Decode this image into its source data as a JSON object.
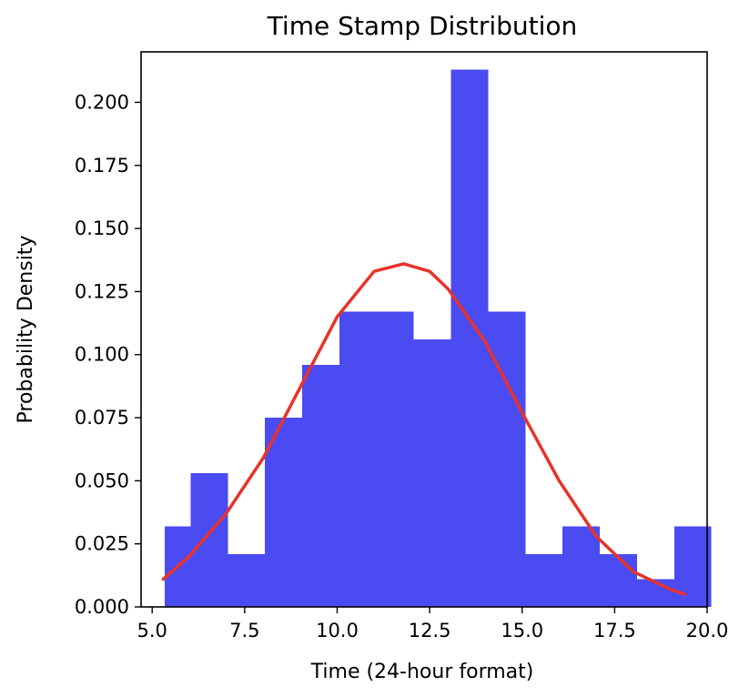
{
  "chart_data": {
    "type": "bar",
    "title": "Time Stamp Distribution",
    "xlabel": "Time (24-hour format)",
    "ylabel": "Probability Density",
    "xlim": [
      4.7,
      20.0
    ],
    "ylim": [
      0.0,
      0.22
    ],
    "xticks": [
      5.0,
      7.5,
      10.0,
      12.5,
      15.0,
      17.5,
      20.0
    ],
    "xtick_labels": [
      "5.0",
      "7.5",
      "10.0",
      "12.5",
      "15.0",
      "17.5",
      "20.0"
    ],
    "yticks": [
      0.0,
      0.025,
      0.05,
      0.075,
      0.1,
      0.125,
      0.15,
      0.175,
      0.2
    ],
    "ytick_labels": [
      "0.000",
      "0.025",
      "0.050",
      "0.075",
      "0.100",
      "0.125",
      "0.150",
      "0.175",
      "0.200"
    ],
    "grid": false,
    "series": [
      {
        "type": "histogram",
        "color": "#4b4bf2",
        "bins": [
          {
            "x0": 5.34,
            "x1": 6.04,
            "value": 0.032
          },
          {
            "x0": 6.04,
            "x1": 7.05,
            "value": 0.053
          },
          {
            "x0": 7.05,
            "x1": 8.05,
            "value": 0.021
          },
          {
            "x0": 8.05,
            "x1": 9.06,
            "value": 0.075
          },
          {
            "x0": 9.06,
            "x1": 10.06,
            "value": 0.096
          },
          {
            "x0": 10.06,
            "x1": 11.07,
            "value": 0.117
          },
          {
            "x0": 11.07,
            "x1": 12.07,
            "value": 0.117
          },
          {
            "x0": 12.07,
            "x1": 13.08,
            "value": 0.106
          },
          {
            "x0": 13.08,
            "x1": 14.08,
            "value": 0.213
          },
          {
            "x0": 14.08,
            "x1": 15.09,
            "value": 0.117
          },
          {
            "x0": 15.09,
            "x1": 16.09,
            "value": 0.021
          },
          {
            "x0": 16.09,
            "x1": 17.1,
            "value": 0.032
          },
          {
            "x0": 17.1,
            "x1": 18.1,
            "value": 0.021
          },
          {
            "x0": 18.1,
            "x1": 19.11,
            "value": 0.011
          },
          {
            "x0": 19.11,
            "x1": 20.11,
            "value": 0.032
          }
        ]
      },
      {
        "type": "line",
        "color": "#e8322a",
        "x": [
          5.3,
          6.0,
          7.0,
          8.0,
          9.0,
          10.0,
          11.0,
          11.8,
          12.5,
          13.0,
          14.0,
          15.0,
          16.0,
          17.0,
          18.0,
          19.0,
          19.4
        ],
        "y": [
          0.011,
          0.02,
          0.037,
          0.059,
          0.087,
          0.115,
          0.133,
          0.136,
          0.133,
          0.126,
          0.105,
          0.077,
          0.05,
          0.028,
          0.014,
          0.007,
          0.005
        ]
      }
    ]
  }
}
